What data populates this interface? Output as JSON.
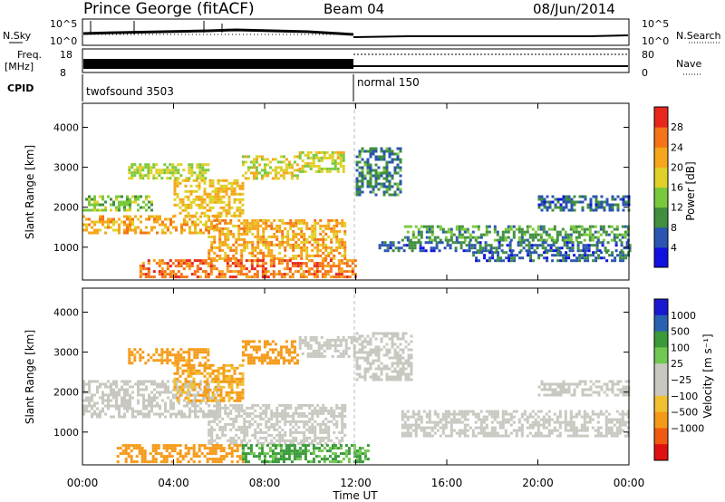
{
  "header": {
    "station": "Prince George (fitACF)",
    "beam": "Beam 04",
    "date": "08/Jun/2014"
  },
  "status_panels": {
    "nsky_label": "N.Sky",
    "nsearch_label": "N.Search",
    "nsky_ticks": [
      "10^5",
      "10^0"
    ],
    "nsearch_ticks": [
      "10^5",
      "10^0"
    ],
    "freq_label": "Freq.",
    "freq_unit": "[MHz]",
    "freq_ticks": [
      "18",
      "8"
    ],
    "nave_label": "Nave",
    "nave_ticks": [
      "80",
      "0"
    ],
    "cpid_label": "CPID",
    "cpid_segments": [
      {
        "name": "twofsound 3503",
        "start_hour": 0,
        "end_hour": 12
      },
      {
        "name": "normal 150",
        "start_hour": 12,
        "end_hour": 24
      }
    ]
  },
  "colors": {
    "power_scale": [
      "#1010e0",
      "#2a55b0",
      "#3f8f3f",
      "#7ac93c",
      "#e0d028",
      "#f5a61a",
      "#f57418",
      "#e8261c"
    ],
    "velocity_scale": [
      "#e01010",
      "#f05a10",
      "#f59a18",
      "#f0c030",
      "#c8c8c0",
      "#c8c8c0",
      "#70c850",
      "#3a9a3a",
      "#2a60b0",
      "#1818d0"
    ],
    "ground_scatter": "#c8c8c0"
  },
  "chart_data": [
    {
      "type": "heatmap",
      "title": "",
      "xlabel": "",
      "ylabel": "Slant Range [km]",
      "xlim": [
        0,
        24
      ],
      "ylim": [
        180,
        4600
      ],
      "x_ticks": [
        "00:00",
        "04:00",
        "08:00",
        "12:00",
        "16:00",
        "20:00",
        "00:00"
      ],
      "x_tick_hours": [
        0,
        4,
        8,
        12,
        16,
        20,
        24
      ],
      "y_ticks": [
        1000,
        2000,
        3000,
        4000
      ],
      "colorbar": {
        "label": "Power [dB]",
        "ticks": [
          4,
          8,
          12,
          16,
          20,
          24,
          28
        ],
        "range": [
          0,
          32
        ]
      },
      "bands": [
        {
          "start_hour": 0.0,
          "end_hour": 6.0,
          "range_start": 1350,
          "range_end": 1800,
          "level": 22
        },
        {
          "start_hour": 0.0,
          "end_hour": 3.0,
          "range_start": 1900,
          "range_end": 2300,
          "level": 14
        },
        {
          "start_hour": 2.0,
          "end_hour": 5.5,
          "range_start": 2700,
          "range_end": 3100,
          "level": 16
        },
        {
          "start_hour": 4.0,
          "end_hour": 7.0,
          "range_start": 1800,
          "range_end": 2700,
          "level": 20
        },
        {
          "start_hour": 7.0,
          "end_hour": 9.5,
          "range_start": 2700,
          "range_end": 3300,
          "level": 18
        },
        {
          "start_hour": 9.5,
          "end_hour": 11.5,
          "range_start": 2900,
          "range_end": 3400,
          "level": 17
        },
        {
          "start_hour": 5.5,
          "end_hour": 11.5,
          "range_start": 700,
          "range_end": 1700,
          "level": 22
        },
        {
          "start_hour": 2.5,
          "end_hour": 12.0,
          "range_start": 250,
          "range_end": 700,
          "level": 26
        },
        {
          "start_hour": 12.0,
          "end_hour": 14.0,
          "range_start": 2300,
          "range_end": 3500,
          "level": 9
        },
        {
          "start_hour": 14.0,
          "end_hour": 24.0,
          "range_start": 1150,
          "range_end": 1550,
          "level": 11
        },
        {
          "start_hour": 13.0,
          "end_hour": 24.0,
          "range_start": 900,
          "range_end": 1150,
          "level": 7
        },
        {
          "start_hour": 17.0,
          "end_hour": 24.0,
          "range_start": 650,
          "range_end": 900,
          "level": 6
        },
        {
          "start_hour": 20.0,
          "end_hour": 24.0,
          "range_start": 1900,
          "range_end": 2300,
          "level": 7
        }
      ]
    },
    {
      "type": "heatmap",
      "title": "",
      "xlabel": "Time UT",
      "ylabel": "Slant Range [km]",
      "xlim": [
        0,
        24
      ],
      "ylim": [
        180,
        4600
      ],
      "x_ticks": [
        "00:00",
        "04:00",
        "08:00",
        "12:00",
        "16:00",
        "20:00",
        "00:00"
      ],
      "x_tick_hours": [
        0,
        4,
        8,
        12,
        16,
        20,
        24
      ],
      "y_ticks": [
        1000,
        2000,
        3000,
        4000
      ],
      "colorbar": {
        "label": "Velocity [m s⁻¹]",
        "ticks": [
          "1000",
          "500",
          "100",
          "25",
          "−25",
          "−100",
          "−500",
          "−1000"
        ]
      },
      "bands": [
        {
          "start_hour": 0.0,
          "end_hour": 6.0,
          "range_start": 1350,
          "range_end": 2300,
          "level": 0,
          "kind": "ground"
        },
        {
          "start_hour": 2.0,
          "end_hour": 5.5,
          "range_start": 2700,
          "range_end": 3100,
          "level": -200
        },
        {
          "start_hour": 4.0,
          "end_hour": 7.0,
          "range_start": 1800,
          "range_end": 2700,
          "level": -150
        },
        {
          "start_hour": 7.0,
          "end_hour": 9.5,
          "range_start": 2700,
          "range_end": 3300,
          "level": -300
        },
        {
          "start_hour": 9.5,
          "end_hour": 12.0,
          "range_start": 2900,
          "range_end": 3400,
          "level": 0,
          "kind": "ground"
        },
        {
          "start_hour": 5.5,
          "end_hour": 11.5,
          "range_start": 700,
          "range_end": 1700,
          "level": 0,
          "kind": "ground"
        },
        {
          "start_hour": 1.5,
          "end_hour": 7.0,
          "range_start": 250,
          "range_end": 700,
          "level": -300
        },
        {
          "start_hour": 7.0,
          "end_hour": 12.5,
          "range_start": 250,
          "range_end": 700,
          "level": 150
        },
        {
          "start_hour": 12.0,
          "end_hour": 14.5,
          "range_start": 2300,
          "range_end": 3500,
          "level": 0,
          "kind": "ground"
        },
        {
          "start_hour": 14.0,
          "end_hour": 24.0,
          "range_start": 900,
          "range_end": 1550,
          "level": 0,
          "kind": "ground"
        },
        {
          "start_hour": 20.0,
          "end_hour": 24.0,
          "range_start": 1900,
          "range_end": 2300,
          "level": 0,
          "kind": "ground"
        }
      ]
    }
  ]
}
